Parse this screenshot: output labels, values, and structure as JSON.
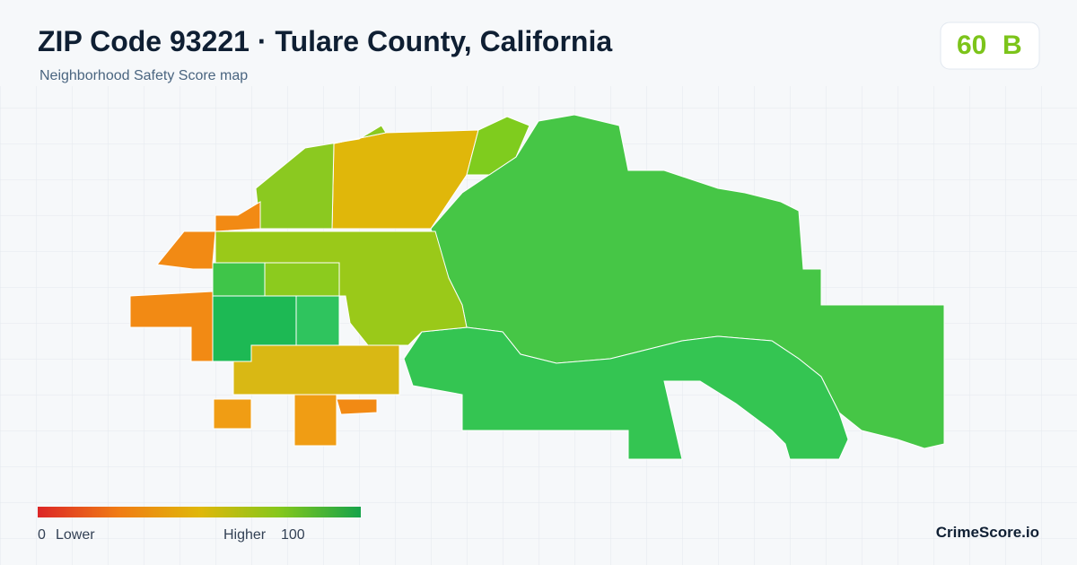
{
  "header": {
    "title": "ZIP Code 93221 · Tulare County, California",
    "subtitle": "Neighborhood Safety Score map"
  },
  "score": {
    "value": "60",
    "grade": "B"
  },
  "legend": {
    "min": "0",
    "min_label": "Lower",
    "max_label": "Higher",
    "max": "100"
  },
  "brand": "CrimeScore.io"
}
